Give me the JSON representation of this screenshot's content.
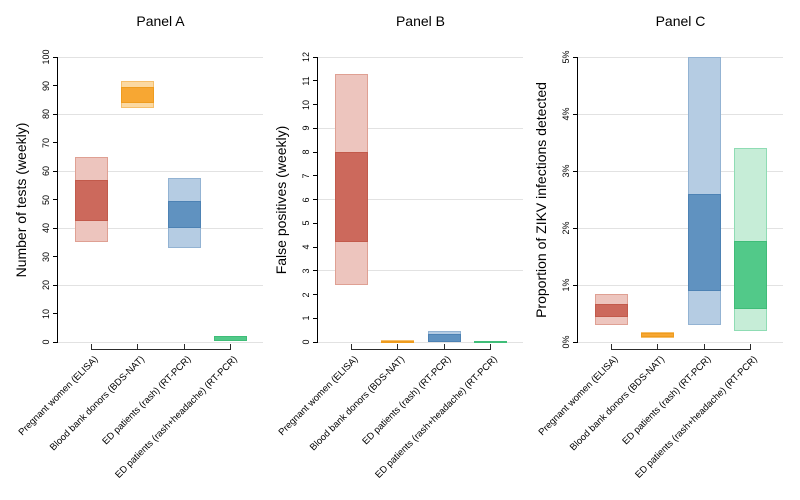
{
  "figure": {
    "background": "#ffffff",
    "grid_color": "#e2e2e2",
    "axis_color": "#000000",
    "text_color": "#000000"
  },
  "palette": {
    "red": {
      "outer": "#edc5be",
      "inner": "#cc695c",
      "outer_border": "#dfa093",
      "inner_border": "#c25a4b"
    },
    "orange": {
      "outer": "#fbd9a2",
      "inner": "#f7a733",
      "outer_border": "#f6bf6b",
      "inner_border": "#ee9c1f"
    },
    "blue": {
      "outer": "#b5cce3",
      "inner": "#6092c0",
      "outer_border": "#93b3d3",
      "inner_border": "#4d82b4"
    },
    "green": {
      "outer": "#c6edd7",
      "inner": "#52c989",
      "outer_border": "#8fdcb4",
      "inner_border": "#3fbd78"
    }
  },
  "categories": [
    "Pregnant women (ELISA)",
    "Blood bank donors (BDS-NAT)",
    "ED patients (rash) (RT-PCR)",
    "ED patients (rash+headache) (RT-PCR)"
  ],
  "chart_data": [
    {
      "type": "bar",
      "title": "Panel A",
      "ylabel": "Number of tests (weekly)",
      "xlabel": "",
      "ylim": [
        0,
        100
      ],
      "ytick_step": 10,
      "ytick_suffix": "",
      "grid_step": 20,
      "grid_on": true,
      "legend": "none",
      "categories": [
        "Pregnant women (ELISA)",
        "Blood bank donors (BDS-NAT)",
        "ED patients (rash) (RT-PCR)",
        "ED patients (rash+headache) (RT-PCR)"
      ],
      "series": [
        {
          "name": "Pregnant women (ELISA)",
          "color": "red",
          "outer": [
            35,
            65
          ],
          "inner": [
            42.5,
            57
          ]
        },
        {
          "name": "Blood bank donors (BDS-NAT)",
          "color": "orange",
          "outer": [
            82,
            91.5
          ],
          "inner": [
            84,
            89.5
          ]
        },
        {
          "name": "ED patients (rash) (RT-PCR)",
          "color": "blue",
          "outer": [
            33,
            57.5
          ],
          "inner": [
            40,
            49.5
          ]
        },
        {
          "name": "ED patients (rash+headache) (RT-PCR)",
          "color": "green",
          "outer": [
            0.3,
            2.1
          ],
          "inner": [
            0.4,
            2.0
          ]
        }
      ]
    },
    {
      "type": "bar",
      "title": "Panel B",
      "ylabel": "False positives (weekly)",
      "xlabel": "",
      "ylim": [
        0,
        12
      ],
      "ytick_step": 1,
      "ytick_suffix": "",
      "grid_step": 3,
      "grid_on": true,
      "legend": "none",
      "categories": [
        "Pregnant women (ELISA)",
        "Blood bank donors (BDS-NAT)",
        "ED patients (rash) (RT-PCR)",
        "ED patients (rash+headache) (RT-PCR)"
      ],
      "series": [
        {
          "name": "Pregnant women (ELISA)",
          "color": "red",
          "outer": [
            2.4,
            11.3
          ],
          "inner": [
            4.2,
            8.0
          ]
        },
        {
          "name": "Blood bank donors (BDS-NAT)",
          "color": "orange",
          "outer": [
            0,
            0.07
          ],
          "inner": [
            0,
            0.06
          ]
        },
        {
          "name": "ED patients (rash) (RT-PCR)",
          "color": "blue",
          "outer": [
            0,
            0.48
          ],
          "inner": [
            0,
            0.32
          ]
        },
        {
          "name": "ED patients (rash+headache) (RT-PCR)",
          "color": "green",
          "outer": [
            0,
            0.05
          ],
          "inner": [
            0,
            0.04
          ]
        }
      ]
    },
    {
      "type": "bar",
      "title": "Panel C",
      "ylabel": "Proportion of ZIKV infections detected",
      "xlabel": "",
      "ylim": [
        0,
        5
      ],
      "ytick_step": 1,
      "ytick_suffix": "%",
      "grid_step": 1,
      "grid_on": true,
      "legend": "none",
      "categories": [
        "Pregnant women (ELISA)",
        "Blood bank donors (BDS-NAT)",
        "ED patients (rash) (RT-PCR)",
        "ED patients (rash+headache) (RT-PCR)"
      ],
      "series": [
        {
          "name": "Pregnant women (ELISA)",
          "color": "red",
          "outer": [
            0.3,
            0.85
          ],
          "inner": [
            0.43,
            0.66
          ]
        },
        {
          "name": "Blood bank donors (BDS-NAT)",
          "color": "orange",
          "outer": [
            0.07,
            0.17
          ],
          "inner": [
            0.08,
            0.16
          ]
        },
        {
          "name": "ED patients (rash) (RT-PCR)",
          "color": "blue",
          "outer": [
            0.3,
            5.0
          ],
          "inner": [
            0.9,
            2.6
          ]
        },
        {
          "name": "ED patients (rash+headache) (RT-PCR)",
          "color": "green",
          "outer": [
            0.2,
            3.4
          ],
          "inner": [
            0.58,
            1.78
          ]
        }
      ]
    }
  ]
}
